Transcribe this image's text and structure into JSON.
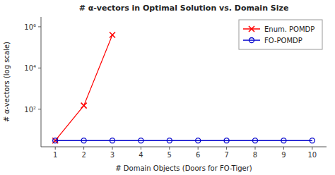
{
  "chart_data": {
    "type": "line",
    "title": "# α-vectors in Optimal Solution vs. Domain Size",
    "x_label": "# Domain Objects (Doors for FO-Tiger)",
    "y_label": "# α-vectors (log scale)",
    "series": [
      {
        "name": "Enum. POMDP",
        "color": "#ff0000",
        "marker": "x",
        "line_style": "solid",
        "x": [
          1,
          2,
          3
        ],
        "values": [
          3,
          150,
          400000
        ]
      },
      {
        "name": "FO-POMDP",
        "color": "#0000cc",
        "marker": "o",
        "line_style": "solid",
        "x": [
          1,
          2,
          3,
          4,
          5,
          6,
          7,
          8,
          9,
          10
        ],
        "values": [
          3,
          3,
          3,
          3,
          3,
          3,
          3,
          3,
          3,
          3
        ]
      }
    ],
    "xlim": [
      0.5,
      10.5
    ],
    "ylim": [
      1.5,
      3000000
    ],
    "xticks": [
      1,
      2,
      3,
      4,
      5,
      6,
      7,
      8,
      9,
      10
    ],
    "yticks": [
      {
        "value": 100,
        "label": "10²"
      },
      {
        "value": 10000,
        "label": "10⁴"
      },
      {
        "value": 1000000,
        "label": "10⁶"
      }
    ],
    "log": "y",
    "grid": false,
    "legend": "upper right"
  }
}
